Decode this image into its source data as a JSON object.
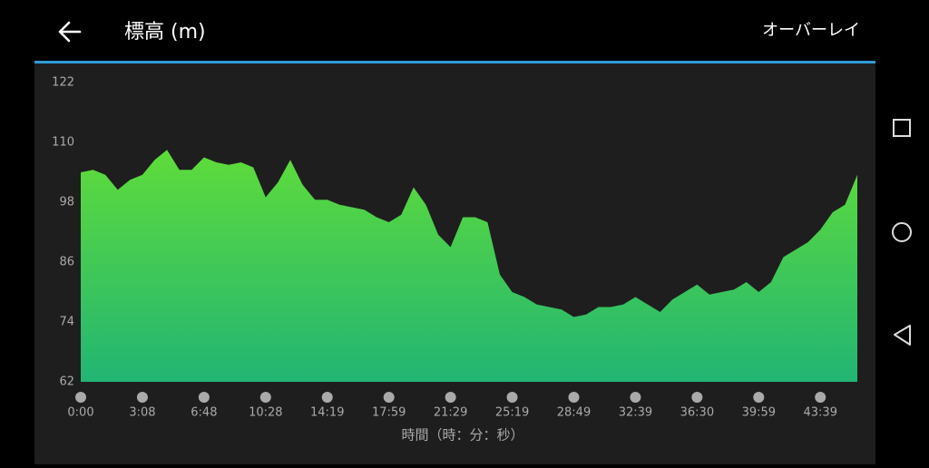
{
  "header": {
    "title": "標高 (m)",
    "action": "オーバーレイ"
  },
  "chart_data": {
    "type": "area",
    "x_label": "時間（時：分：秒）",
    "values": [
      104,
      104.5,
      103.5,
      100.5,
      102.5,
      103.5,
      106.5,
      108.5,
      104.5,
      104.5,
      107,
      106,
      105.5,
      106,
      105,
      99,
      102,
      106.5,
      101.5,
      98.5,
      98.5,
      97.5,
      97,
      96.5,
      95,
      94,
      95.5,
      101,
      97.5,
      91.5,
      89,
      95,
      95,
      94,
      83.5,
      80,
      79,
      77.5,
      77,
      76.5,
      75,
      75.5,
      77,
      77,
      77.5,
      79,
      77.5,
      76,
      78.5,
      80,
      81.5,
      79.5,
      80,
      80.5,
      82,
      80,
      82,
      87,
      88.5,
      90,
      92.5,
      96,
      97.5,
      103.5
    ],
    "xlim": [
      0,
      63
    ],
    "xticks": [
      {
        "value": 0,
        "label": "0:00"
      },
      {
        "value": 5,
        "label": "3:08"
      },
      {
        "value": 10,
        "label": "6:48"
      },
      {
        "value": 15,
        "label": "10:28"
      },
      {
        "value": 20,
        "label": "14:19"
      },
      {
        "value": 25,
        "label": "17:59"
      },
      {
        "value": 30,
        "label": "21:29"
      },
      {
        "value": 35,
        "label": "25:19"
      },
      {
        "value": 40,
        "label": "28:49"
      },
      {
        "value": 45,
        "label": "32:39"
      },
      {
        "value": 50,
        "label": "36:30"
      },
      {
        "value": 55,
        "label": "39:59"
      },
      {
        "value": 60,
        "label": "43:39"
      }
    ],
    "ylim": [
      62,
      122
    ],
    "yticks": [
      62,
      74,
      86,
      98,
      110,
      122
    ],
    "grid": false,
    "gradient": [
      "#5fdc3a",
      "#22b574"
    ]
  }
}
